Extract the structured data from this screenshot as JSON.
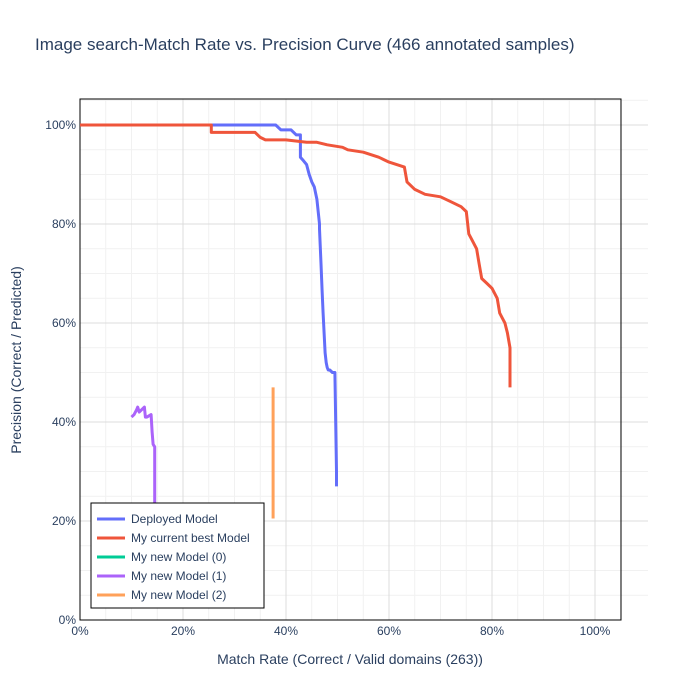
{
  "chart_data": {
    "type": "line",
    "title": "Image search-Match Rate vs. Precision Curve (466 annotated samples)",
    "xlabel": "Match Rate (Correct / Valid domains (263))",
    "ylabel": "Precision (Correct / Predicted)",
    "xlim": [
      0,
      1.05
    ],
    "ylim": [
      0,
      1.05
    ],
    "x_ticks": [
      0,
      0.2,
      0.4,
      0.6,
      0.8,
      1.0
    ],
    "x_tick_labels": [
      "0%",
      "20%",
      "40%",
      "60%",
      "80%",
      "100%"
    ],
    "y_ticks": [
      0,
      0.2,
      0.4,
      0.6,
      0.8,
      1.0
    ],
    "y_tick_labels": [
      "0%",
      "20%",
      "40%",
      "60%",
      "80%",
      "100%"
    ],
    "grid": true,
    "legend_position": "bottom-left",
    "series": [
      {
        "name": "Deployed Model",
        "color": "#636efa",
        "x": [
          0.0,
          0.1,
          0.2,
          0.3,
          0.38,
          0.39,
          0.41,
          0.42,
          0.428,
          0.428,
          0.432,
          0.44,
          0.445,
          0.45,
          0.455,
          0.46,
          0.465,
          0.465,
          0.468,
          0.47,
          0.472,
          0.474,
          0.476,
          0.478,
          0.48,
          0.482,
          0.485,
          0.49,
          0.495,
          0.498,
          0.498
        ],
        "y": [
          1.0,
          1.0,
          1.0,
          1.0,
          1.0,
          0.99,
          0.99,
          0.98,
          0.98,
          0.935,
          0.93,
          0.92,
          0.9,
          0.885,
          0.875,
          0.85,
          0.8,
          0.79,
          0.72,
          0.67,
          0.62,
          0.58,
          0.54,
          0.52,
          0.51,
          0.505,
          0.505,
          0.5,
          0.5,
          0.3,
          0.27
        ]
      },
      {
        "name": "My current best Model",
        "color": "#ef553b",
        "x": [
          0.0,
          0.1,
          0.2,
          0.255,
          0.255,
          0.34,
          0.35,
          0.36,
          0.4,
          0.44,
          0.46,
          0.48,
          0.51,
          0.52,
          0.55,
          0.58,
          0.6,
          0.63,
          0.635,
          0.64,
          0.65,
          0.67,
          0.7,
          0.72,
          0.74,
          0.75,
          0.755,
          0.76,
          0.77,
          0.775,
          0.78,
          0.79,
          0.8,
          0.805,
          0.81,
          0.815,
          0.82,
          0.825,
          0.83,
          0.835,
          0.835
        ],
        "y": [
          1.0,
          1.0,
          1.0,
          1.0,
          0.985,
          0.985,
          0.975,
          0.97,
          0.97,
          0.965,
          0.965,
          0.96,
          0.955,
          0.95,
          0.945,
          0.935,
          0.925,
          0.915,
          0.885,
          0.88,
          0.87,
          0.86,
          0.855,
          0.845,
          0.835,
          0.825,
          0.78,
          0.77,
          0.75,
          0.72,
          0.69,
          0.68,
          0.67,
          0.66,
          0.65,
          0.62,
          0.61,
          0.6,
          0.58,
          0.55,
          0.47
        ]
      },
      {
        "name": "My new Model (0)",
        "color": "#00cc96",
        "x": [],
        "y": []
      },
      {
        "name": "My new Model (1)",
        "color": "#ab63fa",
        "x": [
          0.1,
          0.105,
          0.11,
          0.112,
          0.115,
          0.12,
          0.125,
          0.127,
          0.13,
          0.138,
          0.14,
          0.142,
          0.145,
          0.145
        ],
        "y": [
          0.41,
          0.415,
          0.425,
          0.43,
          0.42,
          0.425,
          0.43,
          0.41,
          0.41,
          0.415,
          0.38,
          0.355,
          0.35,
          0.23
        ]
      },
      {
        "name": "My new Model (2)",
        "color": "#ffa15a",
        "x": [
          0.375,
          0.375
        ],
        "y": [
          0.47,
          0.205
        ]
      }
    ]
  }
}
